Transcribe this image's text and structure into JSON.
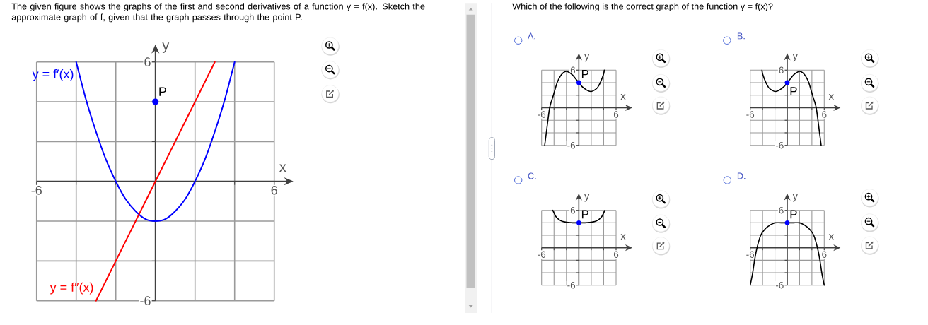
{
  "chart_data": [
    {
      "type": "line",
      "title": "The given figure shows the graphs of the first and second derivatives of a function y = f(x). Sketch the approximate graph of f, given that the graph passes through the point P.",
      "xlabel": "x",
      "ylabel": "y",
      "xlim": [
        -6,
        6
      ],
      "ylim": [
        -6,
        6
      ],
      "xticks": [
        -6,
        {
          "value": -4,
          "label": null
        },
        {
          "value": -2,
          "label": null
        },
        {
          "value": 2,
          "label": null
        },
        {
          "value": 4,
          "label": null
        },
        6
      ],
      "yticks": [
        -6,
        {
          "value": -4,
          "label": null
        },
        {
          "value": -2,
          "label": null
        },
        {
          "value": 2,
          "label": null
        },
        {
          "value": 4,
          "label": null
        },
        6
      ],
      "grid": true,
      "series": [
        {
          "name": "y = f′(x)",
          "color": "#0000ff",
          "x": [
            -4,
            -3.5,
            -3,
            -2.5,
            -2,
            -1.5,
            -1,
            -0.5,
            0,
            0.5,
            1,
            1.5,
            2,
            2.5,
            3,
            3.5,
            4
          ],
          "values": [
            6,
            4.1,
            2.5,
            1.1,
            0,
            -0.9,
            -1.5,
            -1.9,
            -2,
            -1.9,
            -1.5,
            -0.9,
            0,
            1.1,
            2.5,
            4.1,
            6
          ]
        },
        {
          "name": "y = f″(x)",
          "color": "#ff0000",
          "x": [
            -3,
            0,
            3
          ],
          "values": [
            -6,
            0,
            6
          ]
        },
        {
          "name": "P",
          "type": "scatter",
          "marker": "circle",
          "color": "#0000ff",
          "x": [
            0
          ],
          "values": [
            4
          ]
        }
      ]
    },
    {
      "type": "other",
      "title": "Which of the following is the correct graph of the function y = f(x)?"
    },
    {
      "type": "line",
      "title": "A.",
      "xlabel": "x",
      "ylabel": "y",
      "xlim": [
        -6,
        6
      ],
      "ylim": [
        -6,
        6
      ],
      "xticks": [
        -6,
        {
          "value": -4,
          "label": null
        },
        {
          "value": -2,
          "label": null
        },
        {
          "value": 2,
          "label": null
        },
        {
          "value": 4,
          "label": null
        },
        6
      ],
      "yticks": [
        -6,
        {
          "value": -4,
          "label": null
        },
        {
          "value": -2,
          "label": null
        },
        {
          "value": 2,
          "label": null
        },
        {
          "value": 4,
          "label": null
        },
        6
      ],
      "grid": true,
      "series": [
        {
          "color": "#000000",
          "x": [
            -5.5,
            -5.2,
            -4.7,
            -4.1,
            -3.5,
            -3,
            -2.5,
            -2,
            -1.5,
            -1,
            -0.5,
            0,
            0.5,
            1,
            1.5,
            2,
            2.5,
            3,
            3.5,
            4,
            4.1
          ],
          "values": [
            -6,
            -3.7,
            0,
            2,
            4,
            5,
            5.6,
            5.8,
            5.6,
            5.2,
            4.6,
            4,
            3.4,
            3,
            2.7,
            2.6,
            2.8,
            3.2,
            4.1,
            5.4,
            6
          ]
        },
        {
          "name": "P",
          "type": "scatter",
          "marker": "circle",
          "color": "#0000ff",
          "x": [
            0
          ],
          "values": [
            4
          ]
        }
      ]
    },
    {
      "type": "line",
      "title": "B.",
      "xlabel": "x",
      "ylabel": "y",
      "xlim": [
        -6,
        6
      ],
      "ylim": [
        -6,
        6
      ],
      "xticks": [
        -6,
        {
          "value": -4,
          "label": null
        },
        {
          "value": -2,
          "label": null
        },
        {
          "value": 2,
          "label": null
        },
        {
          "value": 4,
          "label": null
        },
        6
      ],
      "yticks": [
        -6,
        {
          "value": -4,
          "label": null
        },
        {
          "value": -2,
          "label": null
        },
        {
          "value": 2,
          "label": null
        },
        {
          "value": 4,
          "label": null
        },
        6
      ],
      "grid": true,
      "series": [
        {
          "color": "#000000",
          "x": [
            -4.1,
            -4,
            -3.5,
            -3,
            -2.5,
            -2,
            -1.5,
            -1,
            -0.5,
            0,
            0.5,
            1,
            1.5,
            2,
            2.5,
            3,
            3.5,
            4.1,
            4.7,
            5.2,
            5.5
          ],
          "values": [
            6,
            5.4,
            4.1,
            3.2,
            2.8,
            2.6,
            2.7,
            3,
            3.4,
            4,
            4.6,
            5.2,
            5.6,
            5.8,
            5.6,
            5,
            4,
            2,
            0,
            -3.7,
            -6
          ]
        },
        {
          "name": "P",
          "type": "scatter",
          "marker": "circle",
          "color": "#0000ff",
          "x": [
            0
          ],
          "values": [
            4
          ]
        }
      ]
    },
    {
      "type": "line",
      "title": "C.",
      "xlabel": "x",
      "ylabel": "y",
      "xlim": [
        -6,
        6
      ],
      "ylim": [
        -6,
        6
      ],
      "xticks": [
        -6,
        {
          "value": -4,
          "label": null
        },
        {
          "value": -2,
          "label": null
        },
        {
          "value": 2,
          "label": null
        },
        {
          "value": 4,
          "label": null
        },
        6
      ],
      "yticks": [
        -6,
        {
          "value": -4,
          "label": null
        },
        {
          "value": -2,
          "label": null
        },
        {
          "value": 2,
          "label": null
        },
        {
          "value": 4,
          "label": null
        },
        6
      ],
      "grid": true,
      "series": [
        {
          "color": "#000000",
          "x": [
            -4.2,
            -3.7,
            -3.2,
            -2.6,
            -2,
            -1,
            0,
            1,
            2,
            2.6,
            3.2,
            3.7,
            4.2
          ],
          "values": [
            6,
            5,
            4.5,
            4.2,
            4.1,
            4,
            4,
            4,
            4.1,
            4.2,
            4.5,
            5,
            6
          ]
        },
        {
          "name": "P",
          "type": "scatter",
          "marker": "circle",
          "color": "#0000ff",
          "x": [
            0
          ],
          "values": [
            4
          ]
        }
      ]
    },
    {
      "type": "line",
      "title": "D.",
      "xlabel": "x",
      "ylabel": "y",
      "xlim": [
        -6,
        6
      ],
      "ylim": [
        -6,
        6
      ],
      "xticks": [
        -6,
        {
          "value": -4,
          "label": null
        },
        {
          "value": -2,
          "label": null
        },
        {
          "value": 2,
          "label": null
        },
        {
          "value": 4,
          "label": null
        },
        6
      ],
      "yticks": [
        -6,
        {
          "value": -4,
          "label": null
        },
        {
          "value": -2,
          "label": null
        },
        {
          "value": 2,
          "label": null
        },
        {
          "value": 4,
          "label": null
        },
        6
      ],
      "grid": true,
      "series": [
        {
          "color": "#000000",
          "x": [
            -6,
            -5.6,
            -5.3,
            -4.9,
            -4.3,
            -3.6,
            -3,
            -2.5,
            -2,
            -1,
            0,
            1,
            2,
            2.5,
            3,
            3.6,
            4.3,
            4.9,
            5.3,
            5.6,
            6
          ],
          "values": [
            -6,
            -4,
            -2,
            0,
            2,
            3,
            3.5,
            3.8,
            4,
            4,
            4,
            4,
            4,
            3.8,
            3.5,
            3,
            2,
            0,
            -2,
            -4,
            -6
          ]
        },
        {
          "name": "P",
          "type": "scatter",
          "marker": "circle",
          "color": "#0000ff",
          "x": [
            0
          ],
          "values": [
            4
          ]
        }
      ]
    }
  ]
}
